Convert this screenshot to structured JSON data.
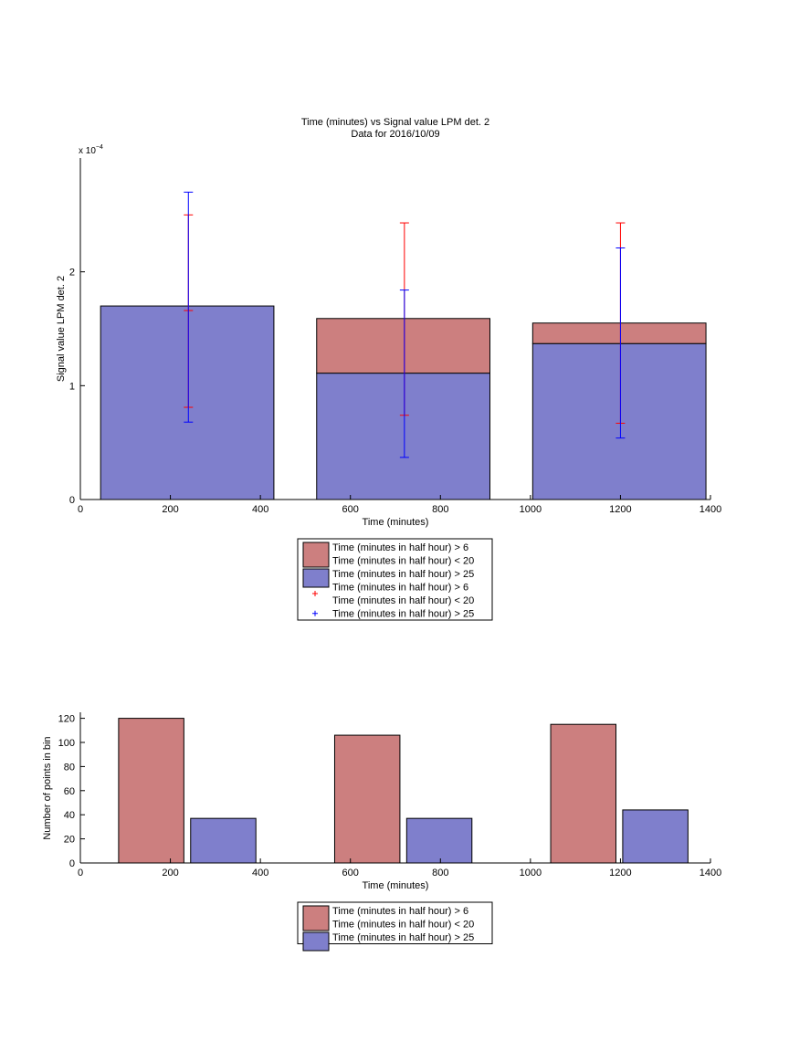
{
  "chart_data": [
    {
      "type": "bar",
      "title": "Time (minutes) vs Signal value LPM det. 2",
      "subtitle": "Data for 2016/10/09",
      "xlabel": "Time (minutes)",
      "ylabel": "Signal value LPM det. 2",
      "y_exponent_label": "x 10",
      "y_exponent_power": "−4",
      "xlim": [
        0,
        1400
      ],
      "ylim": [
        0,
        3
      ],
      "x_ticks": [
        0,
        200,
        400,
        600,
        800,
        1000,
        1200,
        1400
      ],
      "y_ticks": [
        0,
        1,
        2
      ],
      "bars": [
        {
          "x0": 45,
          "x1": 430,
          "stack": [
            {
              "series": "blue",
              "value": 1.7
            }
          ]
        },
        {
          "x0": 525,
          "x1": 910,
          "stack": [
            {
              "series": "blue",
              "value": 1.11
            },
            {
              "series": "red",
              "value": 0.48
            }
          ]
        },
        {
          "x0": 1005,
          "x1": 1390,
          "stack": [
            {
              "series": "blue",
              "value": 1.37
            },
            {
              "series": "red",
              "value": 0.18
            }
          ]
        }
      ],
      "error_bars": [
        {
          "series": "red",
          "x": 240,
          "low": 0.81,
          "mid": 1.66,
          "high": 2.5
        },
        {
          "series": "blue",
          "x": 240,
          "low": 0.68,
          "high": 2.7
        },
        {
          "series": "red",
          "x": 720,
          "low": 0.74,
          "high": 2.43
        },
        {
          "series": "blue",
          "x": 720,
          "low": 0.37,
          "high": 1.84
        },
        {
          "series": "red",
          "x": 1200,
          "low": 0.67,
          "high": 2.43
        },
        {
          "series": "blue",
          "x": 1200,
          "low": 0.54,
          "high": 2.21
        }
      ],
      "legend": {
        "placement": "below",
        "entries": [
          {
            "kind": "patch",
            "series": "red",
            "lines": [
              "Time (minutes in half hour) > 6",
              "Time (minutes in half hour) < 20"
            ]
          },
          {
            "kind": "patch",
            "series": "blue",
            "lines": [
              "Time (minutes in half hour) > 25"
            ]
          },
          {
            "kind": "marker",
            "series": "red",
            "lines": [
              "Time (minutes in half hour) > 6",
              "Time (minutes in half hour) < 20"
            ]
          },
          {
            "kind": "marker",
            "series": "blue",
            "lines": [
              "Time (minutes in half hour) > 25"
            ]
          }
        ]
      }
    },
    {
      "type": "bar",
      "xlabel": "Time (minutes)",
      "ylabel": "Number of points in bin",
      "xlim": [
        0,
        1400
      ],
      "ylim": [
        0,
        125
      ],
      "x_ticks": [
        0,
        200,
        400,
        600,
        800,
        1000,
        1200,
        1400
      ],
      "y_ticks": [
        0,
        20,
        40,
        60,
        80,
        100,
        120
      ],
      "bars": [
        {
          "series": "red",
          "x0": 85,
          "x1": 230,
          "value": 120
        },
        {
          "series": "blue",
          "x0": 245,
          "x1": 390,
          "value": 37
        },
        {
          "series": "red",
          "x0": 565,
          "x1": 710,
          "value": 106
        },
        {
          "series": "blue",
          "x0": 725,
          "x1": 870,
          "value": 37
        },
        {
          "series": "red",
          "x0": 1045,
          "x1": 1190,
          "value": 115
        },
        {
          "series": "blue",
          "x0": 1205,
          "x1": 1350,
          "value": 44
        }
      ],
      "legend": {
        "placement": "below",
        "entries": [
          {
            "kind": "patch",
            "series": "red",
            "lines": [
              "Time (minutes in half hour) > 6",
              "Time (minutes in half hour) < 20"
            ]
          },
          {
            "kind": "patch",
            "series": "blue",
            "lines": [
              "Time (minutes in half hour) > 25"
            ]
          }
        ]
      }
    }
  ],
  "colors": {
    "red_fill": "#cc7f7f",
    "blue_fill": "#7f7fcc",
    "red_marker": "#ff0000",
    "blue_marker": "#0000ff"
  }
}
